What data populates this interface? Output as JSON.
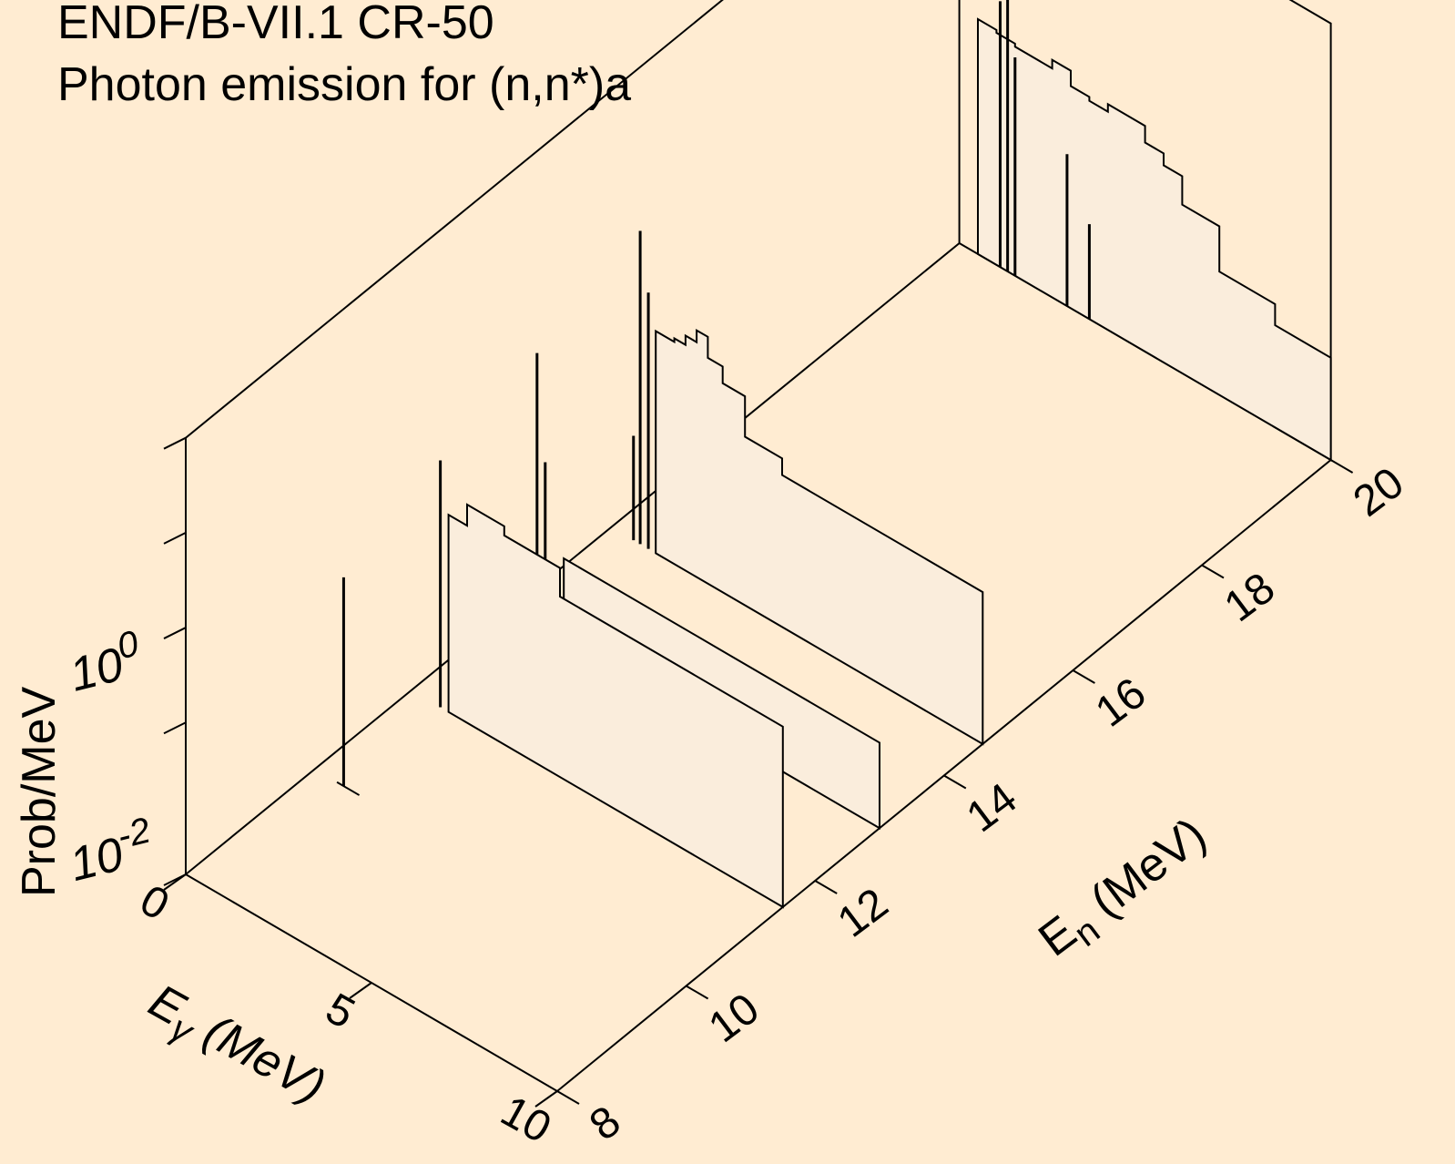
{
  "title_lines": [
    "ENDF/B-VII.1 CR-50",
    "Photon emission for (n,n*)a"
  ],
  "colors": {
    "background": "#ffecd2",
    "fill": "#faeddc",
    "line": "#000000"
  },
  "chart_data": {
    "type": "waterfall-3d",
    "xlabel": {
      "main": "E",
      "sub": "γ",
      "rest": " (MeV)"
    },
    "ylabel": {
      "main": "E",
      "sub": "n",
      "rest": " (MeV)"
    },
    "zlabel": "Prob/MeV",
    "x_range": [
      0,
      10
    ],
    "y_range": [
      8,
      20
    ],
    "z_scale": "log",
    "x_ticks": [
      "0",
      "5",
      "10"
    ],
    "y_ticks": [
      "8",
      "10",
      "12",
      "14",
      "16",
      "18",
      "20"
    ],
    "z_ticks": [
      {
        "base": "10",
        "exp": "-2"
      },
      {
        "base": "10",
        "exp": "0"
      }
    ],
    "series": [
      {
        "en": 10.0,
        "lines": [
          {
            "eg": 0.78,
            "z": 2.2
          }
        ],
        "continuum": []
      },
      {
        "en": 11.5,
        "lines": [
          {
            "eg": 0.78,
            "z": 2.6
          }
        ],
        "continuum": [
          [
            1.0,
            0.3
          ],
          [
            1.5,
            0.5
          ],
          [
            2.5,
            0.4
          ],
          [
            4.0,
            0.2
          ]
        ]
      },
      {
        "en": 13.0,
        "lines": [
          {
            "eg": 0.78,
            "z": 2.9
          },
          {
            "eg": 1.0,
            "z": 1.8
          }
        ],
        "continuum": [
          [
            1.5,
            0.02
          ],
          [
            6.0,
            0.02
          ]
        ]
      },
      {
        "en": 14.6,
        "lines": [
          {
            "eg": 0.78,
            "z": 3.3
          },
          {
            "eg": 1.0,
            "z": 2.7
          },
          {
            "eg": 0.6,
            "z": 1.1
          }
        ],
        "continuum": [
          [
            1.2,
            0.55
          ],
          [
            1.7,
            0.6
          ],
          [
            2.0,
            0.75
          ],
          [
            2.3,
            1.0
          ],
          [
            2.6,
            0.6
          ],
          [
            3.0,
            0.4
          ],
          [
            3.6,
            0.15
          ],
          [
            4.6,
            0.1
          ]
        ]
      },
      {
        "en": 20.0,
        "lines": [
          {
            "eg": 1.1,
            "z": 2.8
          },
          {
            "eg": 1.3,
            "z": 3.1
          },
          {
            "eg": 1.5,
            "z": 2.3
          },
          {
            "eg": 2.9,
            "z": 1.6
          },
          {
            "eg": 3.5,
            "z": 1.0
          }
        ],
        "continuum": [
          [
            0.5,
            0.75
          ],
          [
            1.0,
            0.7
          ],
          [
            1.5,
            0.65
          ],
          [
            2.5,
            0.8
          ],
          [
            3.0,
            0.55
          ],
          [
            3.5,
            0.5
          ],
          [
            4.0,
            0.6
          ],
          [
            5.0,
            0.4
          ],
          [
            5.5,
            0.3
          ],
          [
            6.0,
            0.15
          ],
          [
            7.0,
            0.05
          ],
          [
            8.5,
            0.03
          ],
          [
            10.0,
            0.02
          ]
        ]
      }
    ]
  }
}
